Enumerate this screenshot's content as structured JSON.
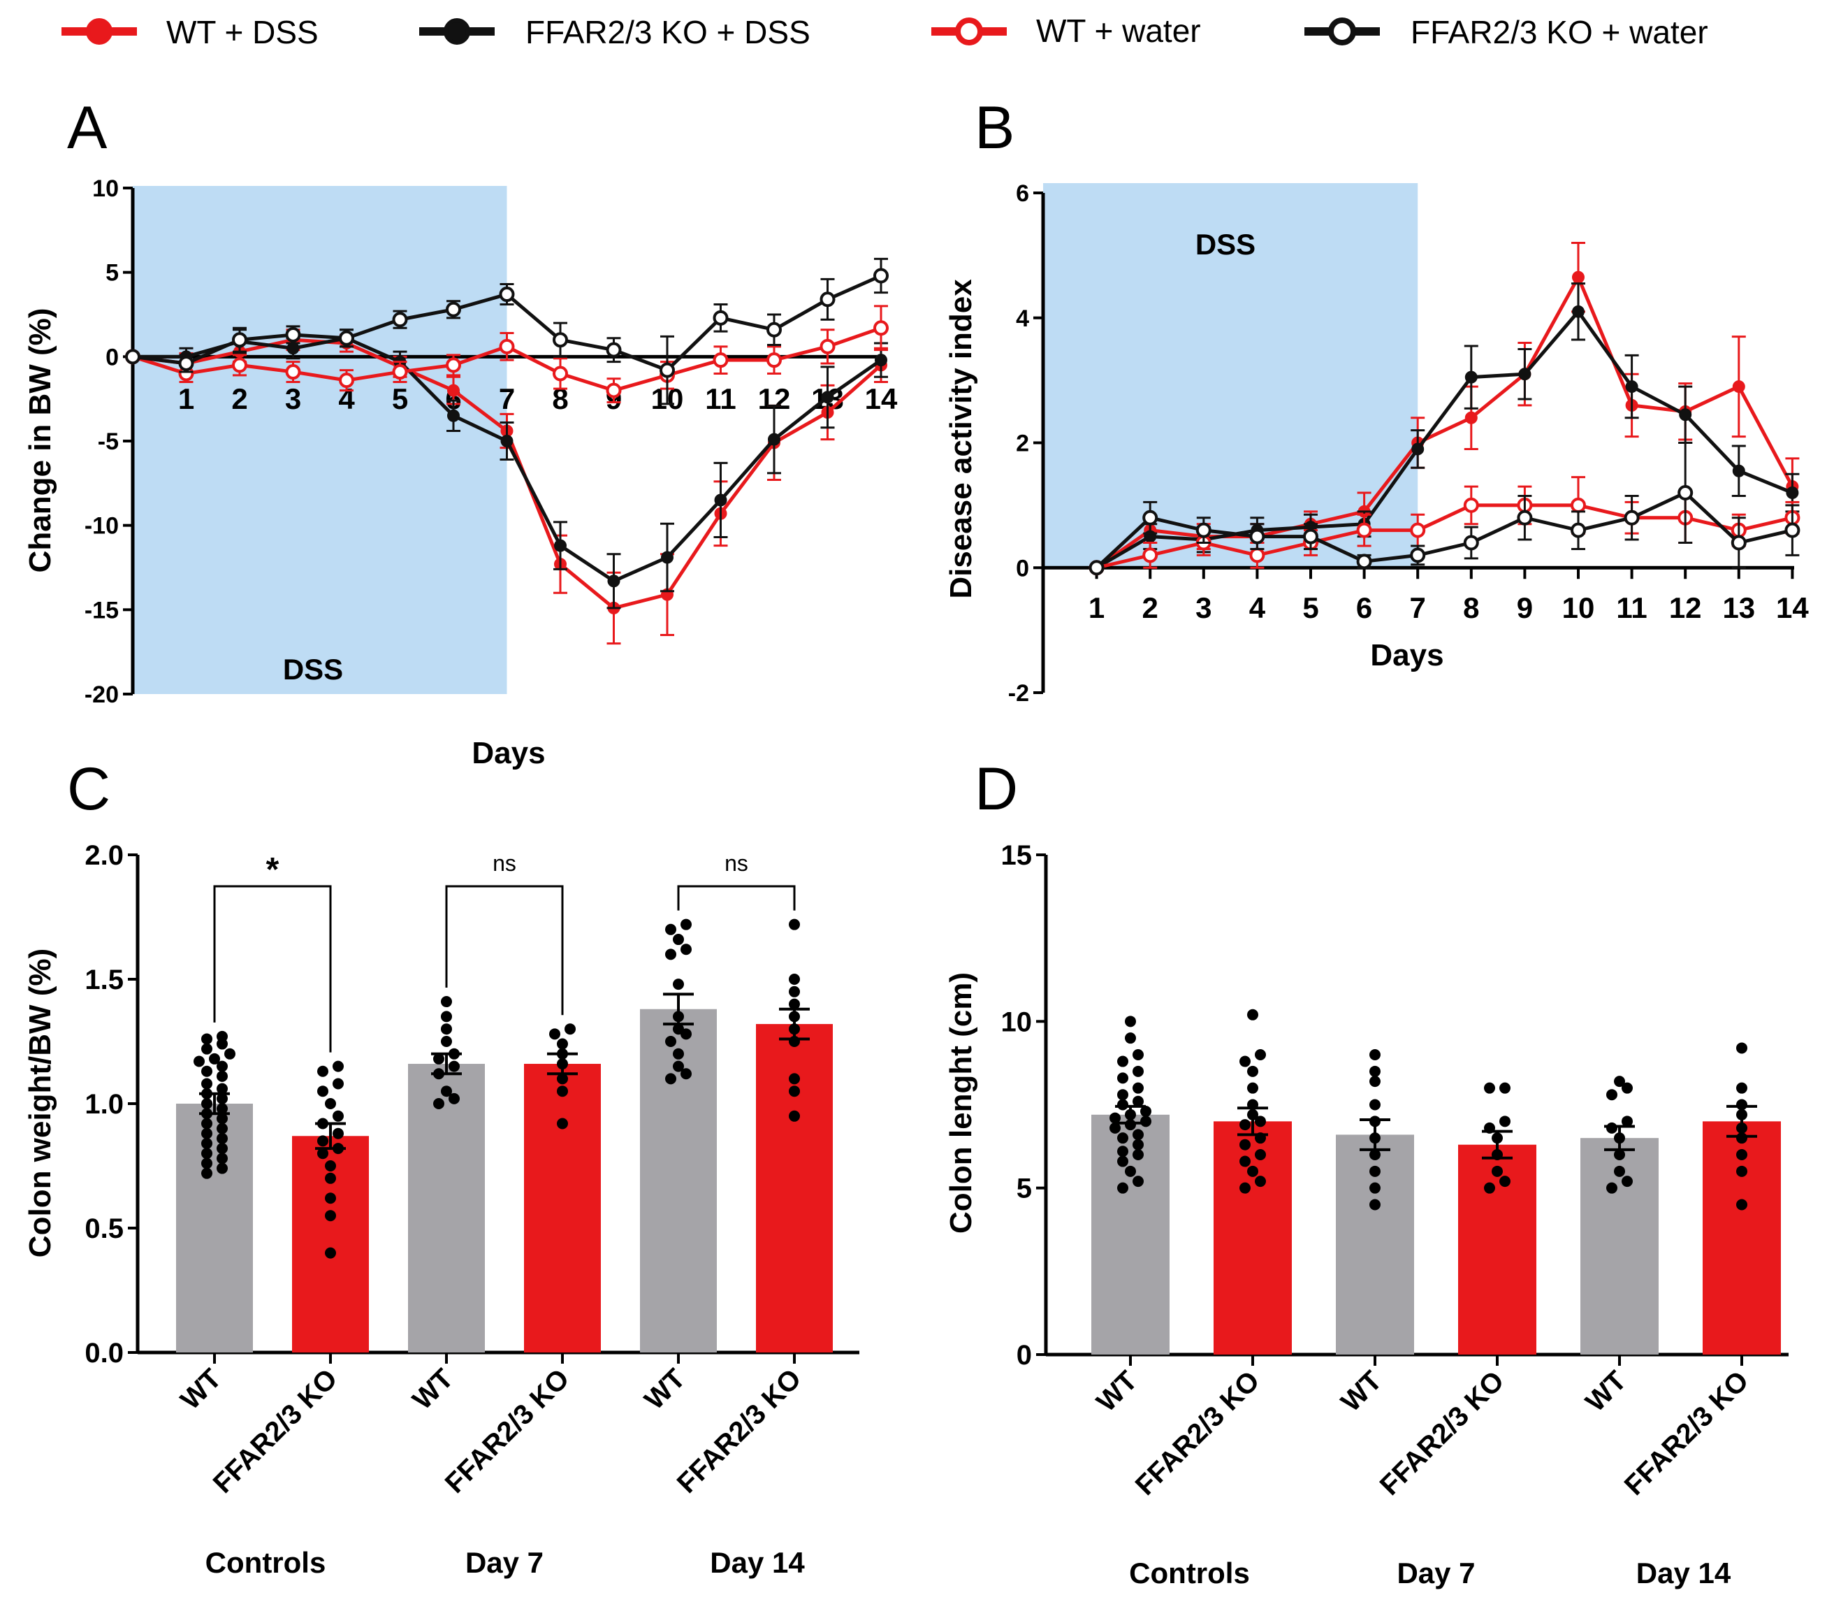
{
  "colors": {
    "red": "#e8191c",
    "black": "#111111",
    "grey": "#a5a4a8",
    "dss_shade": "#bedcf4"
  },
  "legend": [
    {
      "label": "WT + DSS",
      "color": "#e8191c",
      "filled": true
    },
    {
      "label": "FFAR2/3 KO + DSS",
      "color": "#111111",
      "filled": true
    },
    {
      "label": "WT + water",
      "color": "#e8191c",
      "filled": false
    },
    {
      "label": "FFAR2/3 KO + water",
      "color": "#111111",
      "filled": false
    }
  ],
  "chart_data": [
    {
      "panel": "A",
      "type": "line",
      "ylabel": "Change in BW (%)",
      "xlabel": "Days",
      "ylim": [
        -20,
        10
      ],
      "yticks": [
        "10",
        "5",
        "0",
        "-5",
        "-10",
        "-15",
        "-20"
      ],
      "x_start": 0,
      "xticks": [
        "1",
        "2",
        "3",
        "4",
        "5",
        "6",
        "7",
        "8",
        "9",
        "10",
        "11",
        "12",
        "13",
        "14"
      ],
      "shaded_region": {
        "label": "DSS",
        "from_day": 0,
        "to_day": 7
      },
      "series": [
        {
          "name": "WT + DSS",
          "filled": true,
          "color": "#e8191c",
          "values": [
            0,
            -0.4,
            0.3,
            1.0,
            0.8,
            -0.6,
            -2.0,
            -4.4,
            -12.3,
            -14.9,
            -14.1,
            -9.3,
            -5.1,
            -3.3,
            -0.5
          ],
          "errors": [
            0,
            0.6,
            0.6,
            0.6,
            0.5,
            0.6,
            0.8,
            1.0,
            1.7,
            2.1,
            2.4,
            1.9,
            2.2,
            1.6,
            1.0
          ]
        },
        {
          "name": "FFAR2/3 KO + DSS",
          "filled": true,
          "color": "#111111",
          "values": [
            0,
            0,
            0.9,
            0.5,
            1.1,
            -0.3,
            -3.5,
            -5.0,
            -11.2,
            -13.3,
            -11.9,
            -8.5,
            -4.9,
            -2.4,
            -0.2
          ],
          "errors": [
            0,
            0.5,
            0.7,
            0.6,
            0.5,
            0.6,
            0.9,
            1.1,
            1.4,
            1.6,
            2.0,
            2.2,
            2.0,
            1.8,
            1.0
          ]
        },
        {
          "name": "WT + water",
          "filled": false,
          "color": "#e8191c",
          "values": [
            0,
            -1.0,
            -0.5,
            -0.9,
            -1.4,
            -0.9,
            -0.5,
            0.6,
            -1.0,
            -2.0,
            -1.1,
            -0.2,
            -0.2,
            0.6,
            1.7
          ],
          "errors": [
            0,
            0.5,
            0.6,
            0.6,
            0.6,
            0.6,
            0.6,
            0.8,
            0.9,
            0.7,
            0.8,
            0.8,
            0.8,
            1.0,
            1.3
          ]
        },
        {
          "name": "FFAR2/3 KO + water",
          "filled": false,
          "color": "#111111",
          "values": [
            0,
            -0.4,
            1.0,
            1.3,
            1.1,
            2.2,
            2.8,
            3.7,
            1.0,
            0.4,
            -0.8,
            2.3,
            1.6,
            3.4,
            4.8
          ],
          "errors": [
            0,
            0.5,
            0.7,
            0.5,
            0.5,
            0.5,
            0.5,
            0.6,
            1.0,
            0.7,
            2.0,
            0.8,
            0.9,
            1.2,
            1.0
          ]
        }
      ]
    },
    {
      "panel": "B",
      "type": "line",
      "ylabel": "Disease activity index",
      "xlabel": "Days",
      "ylim": [
        -2,
        6
      ],
      "yticks": [
        "6",
        "4",
        "2",
        "0",
        "-2"
      ],
      "x_start": 1,
      "xticks": [
        "1",
        "2",
        "3",
        "4",
        "5",
        "6",
        "7",
        "8",
        "9",
        "10",
        "11",
        "12",
        "13",
        "14"
      ],
      "shaded_region": {
        "label": "DSS",
        "from_day": 0,
        "to_day": 7
      },
      "series": [
        {
          "name": "WT + DSS",
          "filled": true,
          "color": "#e8191c",
          "values": [
            0,
            0.6,
            0.5,
            0.5,
            0.7,
            0.9,
            2.0,
            2.4,
            3.1,
            4.65,
            2.6,
            2.5,
            2.9,
            1.3
          ],
          "errors": [
            0,
            0.2,
            0.2,
            0.2,
            0.2,
            0.3,
            0.4,
            0.5,
            0.5,
            0.55,
            0.5,
            0.45,
            0.8,
            0.45
          ]
        },
        {
          "name": "FFAR2/3 KO + DSS",
          "filled": true,
          "color": "#111111",
          "values": [
            0,
            0.5,
            0.45,
            0.6,
            0.65,
            0.7,
            1.9,
            3.05,
            3.1,
            4.1,
            2.9,
            2.45,
            1.55,
            1.2
          ],
          "errors": [
            0,
            0.2,
            0.2,
            0.2,
            0.2,
            0.2,
            0.3,
            0.5,
            0.4,
            0.45,
            0.5,
            0.45,
            0.4,
            0.3
          ]
        },
        {
          "name": "WT + water",
          "filled": false,
          "color": "#e8191c",
          "values": [
            0,
            0.2,
            0.4,
            0.2,
            0.4,
            0.6,
            0.6,
            1.0,
            1.0,
            1.0,
            0.8,
            0.8,
            0.6,
            0.8
          ],
          "errors": [
            0,
            0.2,
            0.2,
            0.2,
            0.2,
            0.25,
            0.25,
            0.3,
            0.3,
            0.45,
            0.25,
            0.4,
            0.25,
            0.25
          ]
        },
        {
          "name": "FFAR2/3 KO + water",
          "filled": false,
          "color": "#111111",
          "values": [
            0,
            0.8,
            0.6,
            0.5,
            0.5,
            0.1,
            0.2,
            0.4,
            0.8,
            0.6,
            0.8,
            1.2,
            0.4,
            0.6
          ],
          "errors": [
            0,
            0.25,
            0.2,
            0.2,
            0.2,
            0.1,
            0.15,
            0.25,
            0.35,
            0.3,
            0.35,
            0.8,
            0.4,
            0.4
          ]
        }
      ]
    },
    {
      "panel": "C",
      "type": "bar",
      "ylabel": "Colon weight/BW (%)",
      "ylim": [
        0,
        2
      ],
      "yticks": [
        "2.0",
        "1.5",
        "1.0",
        "0.5",
        "0.0"
      ],
      "categories": [
        "WT",
        "FFAR2/3 KO",
        "WT",
        "FFAR2/3 KO",
        "WT",
        "FFAR2/3 KO"
      ],
      "groups": [
        "Controls",
        "Day 7",
        "Day 14"
      ],
      "bar_colors": [
        "#a5a4a8",
        "#e8191c",
        "#a5a4a8",
        "#e8191c",
        "#a5a4a8",
        "#e8191c"
      ],
      "values": [
        1.0,
        0.87,
        1.16,
        1.16,
        1.38,
        1.32
      ],
      "sem": [
        0.04,
        0.05,
        0.04,
        0.04,
        0.06,
        0.06
      ],
      "points": [
        [
          1.27,
          1.26,
          1.24,
          1.22,
          1.2,
          1.18,
          1.17,
          1.15,
          1.13,
          1.11,
          1.08,
          1.06,
          1.04,
          1.02,
          1.0,
          0.98,
          0.96,
          0.94,
          0.92,
          0.9,
          0.88,
          0.86,
          0.84,
          0.82,
          0.8,
          0.78,
          0.76,
          0.74,
          0.72
        ],
        [
          1.15,
          1.13,
          1.08,
          1.05,
          1.0,
          0.95,
          0.92,
          0.88,
          0.85,
          0.82,
          0.8,
          0.75,
          0.7,
          0.62,
          0.55,
          0.4
        ],
        [
          1.41,
          1.35,
          1.3,
          1.25,
          1.2,
          1.18,
          1.15,
          1.12,
          1.05,
          1.02,
          1.0
        ],
        [
          1.3,
          1.28,
          1.24,
          1.2,
          1.16,
          1.1,
          1.05,
          0.92
        ],
        [
          1.72,
          1.7,
          1.66,
          1.62,
          1.6,
          1.48,
          1.35,
          1.3,
          1.28,
          1.25,
          1.2,
          1.15,
          1.12,
          1.1
        ],
        [
          1.72,
          1.5,
          1.45,
          1.4,
          1.35,
          1.3,
          1.25,
          1.1,
          1.05,
          0.95
        ]
      ],
      "comparisons": [
        {
          "a": 0,
          "b": 1,
          "label": "*"
        },
        {
          "a": 2,
          "b": 3,
          "label": "ns"
        },
        {
          "a": 4,
          "b": 5,
          "label": "ns"
        }
      ]
    },
    {
      "panel": "D",
      "type": "bar",
      "ylabel": "Colon lenght (cm)",
      "ylim": [
        0,
        15
      ],
      "yticks": [
        "15",
        "10",
        "5",
        "0"
      ],
      "categories": [
        "WT",
        "FFAR2/3 KO",
        "WT",
        "FFAR2/3 KO",
        "WT",
        "FFAR2/3 KO"
      ],
      "groups": [
        "Controls",
        "Day 7",
        "Day 14"
      ],
      "bar_colors": [
        "#a5a4a8",
        "#e8191c",
        "#a5a4a8",
        "#e8191c",
        "#a5a4a8",
        "#e8191c"
      ],
      "values": [
        7.2,
        7.0,
        6.6,
        6.3,
        6.5,
        7.0
      ],
      "sem": [
        0.25,
        0.4,
        0.45,
        0.4,
        0.35,
        0.45
      ],
      "points": [
        [
          10.0,
          9.5,
          9.0,
          8.8,
          8.5,
          8.3,
          8.0,
          7.8,
          7.6,
          7.5,
          7.3,
          7.2,
          7.1,
          7.0,
          6.9,
          6.8,
          6.6,
          6.5,
          6.3,
          6.1,
          6.0,
          5.8,
          5.5,
          5.2,
          5.0
        ],
        [
          10.2,
          9.0,
          8.8,
          8.5,
          8.0,
          7.5,
          7.2,
          7.0,
          6.9,
          6.5,
          6.3,
          6.0,
          5.8,
          5.5,
          5.2,
          5.0
        ],
        [
          9.0,
          8.5,
          8.2,
          7.5,
          7.0,
          6.5,
          6.0,
          5.5,
          5.0,
          4.5
        ],
        [
          8.0,
          8.0,
          7.0,
          6.8,
          6.5,
          6.0,
          5.5,
          5.2,
          5.0
        ],
        [
          8.2,
          8.0,
          7.8,
          7.0,
          6.8,
          6.5,
          6.0,
          5.5,
          5.2,
          5.0
        ],
        [
          9.2,
          8.0,
          7.5,
          7.2,
          6.8,
          6.5,
          6.0,
          5.5,
          4.5
        ]
      ]
    }
  ]
}
